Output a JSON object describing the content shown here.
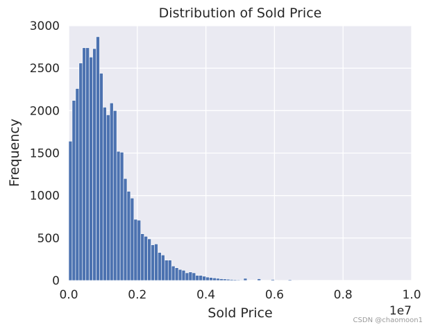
{
  "chart_data": {
    "type": "bar",
    "title": "Distribution of Sold Price",
    "xlabel": "Sold Price",
    "ylabel": "Frequency",
    "x_offset_label": "1e7",
    "xlim": [
      0,
      1.0
    ],
    "ylim": [
      0,
      3000
    ],
    "x_ticks": [
      "0.0",
      "0.2",
      "0.4",
      "0.6",
      "0.8",
      "1.0"
    ],
    "y_ticks": [
      "0",
      "500",
      "1000",
      "1500",
      "2000",
      "2500",
      "3000"
    ],
    "grid": true,
    "bar_color": "#4c72b0",
    "background_color": "#eaeaf2",
    "bin_width": 0.01,
    "bin_start": 0.0,
    "values": [
      1640,
      2120,
      2260,
      2560,
      2740,
      2740,
      2630,
      2730,
      2870,
      2440,
      2040,
      1950,
      2090,
      2000,
      1520,
      1510,
      1200,
      1050,
      970,
      720,
      710,
      550,
      520,
      490,
      420,
      430,
      330,
      300,
      240,
      240,
      170,
      150,
      130,
      120,
      90,
      100,
      90,
      60,
      60,
      50,
      40,
      35,
      30,
      25,
      20,
      18,
      15,
      12,
      10,
      8,
      6,
      25,
      5,
      4,
      3,
      20,
      3,
      2,
      2,
      12,
      2,
      1,
      1,
      1,
      10,
      1,
      1,
      0,
      0,
      0,
      0,
      0,
      0,
      0,
      0,
      0,
      0,
      0,
      0,
      0,
      0,
      0,
      0,
      0,
      0,
      0,
      0,
      0,
      0,
      0,
      0,
      0,
      0,
      0,
      0,
      0
    ]
  },
  "watermark": "CSDN @chaomoon1"
}
